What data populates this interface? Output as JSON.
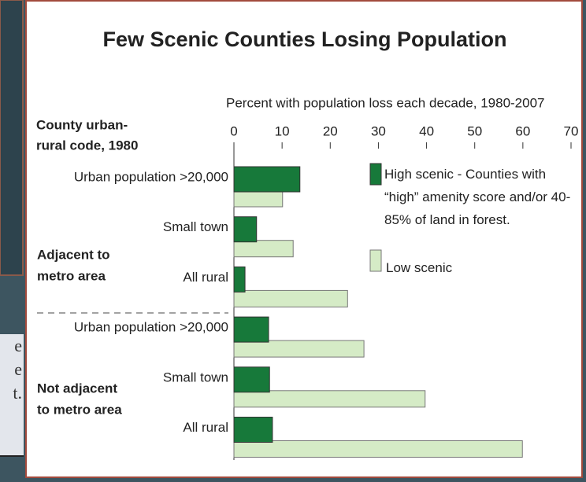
{
  "background_fragments": [
    "e",
    "e",
    "t."
  ],
  "chart_data": {
    "type": "bar",
    "orientation": "horizontal",
    "title": "Few Scenic Counties Losing Population",
    "subtitle": "Percent with population loss each decade, 1980-2007",
    "y_label_lines": [
      "County urban-",
      "rural code, 1980"
    ],
    "categories": [
      "Urban population >20,000",
      "Small town",
      "All rural",
      "Urban population >20,000",
      "Small town",
      "All rural"
    ],
    "groups": [
      {
        "label_lines": [
          "Adjacent to",
          "metro area"
        ]
      },
      {
        "label_lines": [
          "Not adjacent",
          "to metro area"
        ]
      }
    ],
    "xlim": [
      0,
      70
    ],
    "xticks": [
      0,
      10,
      20,
      30,
      40,
      50,
      60,
      70
    ],
    "series": [
      {
        "name": "High scenic - Counties with “high” amenity score and/or 40-85% of land in forest.",
        "color": "#17793a",
        "values": [
          13.7,
          4.7,
          2.3,
          7.2,
          7.4,
          8.0
        ]
      },
      {
        "name": "Low scenic",
        "color": "#d5ebc6",
        "values": [
          10.1,
          12.3,
          23.6,
          27.0,
          39.7,
          59.9
        ]
      }
    ],
    "legend": "right"
  }
}
